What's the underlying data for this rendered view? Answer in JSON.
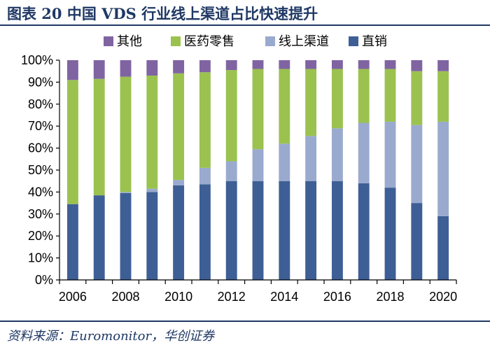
{
  "header": {
    "title": "图表 20   中国 VDS 行业线上渠道占比快速提升"
  },
  "footer": {
    "source": "资料来源：Euromonitor，华创证券"
  },
  "chart_data": {
    "type": "bar",
    "stacked": true,
    "categories": [
      "2006",
      "2007",
      "2008",
      "2009",
      "2010",
      "2011",
      "2012",
      "2013",
      "2014",
      "2015",
      "2016",
      "2017",
      "2018",
      "2019",
      "2020"
    ],
    "x_tick_labels": [
      "2006",
      "2008",
      "2010",
      "2012",
      "2014",
      "2016",
      "2018",
      "2020"
    ],
    "ylim": [
      0,
      100
    ],
    "y_ticks": [
      "0%",
      "10%",
      "20%",
      "30%",
      "40%",
      "50%",
      "60%",
      "70%",
      "80%",
      "90%",
      "100%"
    ],
    "legend_position": "top",
    "series": [
      {
        "name": "直销",
        "color": "#3e5f95",
        "values": [
          34.5,
          38.5,
          39.5,
          40,
          43,
          43.5,
          45,
          45,
          45,
          45,
          45,
          44,
          42,
          35,
          29
        ]
      },
      {
        "name": "线上渠道",
        "color": "#9aaacf",
        "values": [
          0,
          0,
          0.5,
          1.5,
          2.5,
          7.5,
          9,
          14.5,
          17,
          20.5,
          24,
          27.5,
          30,
          35.5,
          43
        ]
      },
      {
        "name": "医药零售",
        "color": "#9bc24f",
        "values": [
          56.5,
          53,
          52.5,
          51.5,
          48.5,
          43.5,
          41.5,
          36.5,
          34,
          30.5,
          27,
          24.5,
          24,
          24.5,
          23
        ]
      },
      {
        "name": "其他",
        "color": "#8064a2",
        "values": [
          9,
          8.5,
          7.5,
          7,
          6,
          5.5,
          4.5,
          4,
          4,
          4,
          4,
          4,
          4,
          5,
          5
        ]
      }
    ],
    "legend_order": [
      "其他",
      "医药零售",
      "线上渠道",
      "直销"
    ],
    "title": "",
    "xlabel": "",
    "ylabel": ""
  }
}
